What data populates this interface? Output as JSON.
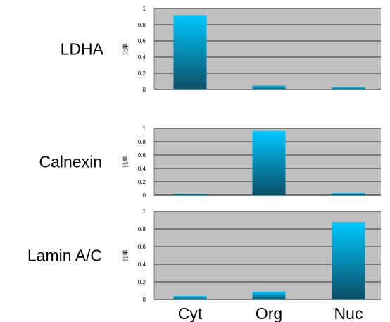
{
  "chart_data": [
    {
      "type": "bar",
      "title": "LDHA",
      "ylabel": "比率",
      "categories": [
        "Cyt",
        "Org",
        "Nuc"
      ],
      "values": [
        0.92,
        0.05,
        0.03
      ],
      "ylim": [
        0,
        1
      ],
      "yticks": [
        "0",
        "0.2",
        "0.4",
        "0.6",
        "0.8",
        "1"
      ],
      "grid": true
    },
    {
      "type": "bar",
      "title": "Calnexin",
      "ylabel": "比率",
      "categories": [
        "Cyt",
        "Org",
        "Nuc"
      ],
      "values": [
        0.02,
        0.96,
        0.03
      ],
      "ylim": [
        0,
        1
      ],
      "yticks": [
        "0",
        "0.2",
        "0.4",
        "0.6",
        "0.8",
        "1"
      ],
      "grid": true
    },
    {
      "type": "bar",
      "title": "Lamin A/C",
      "ylabel": "比率",
      "categories": [
        "Cyt",
        "Org",
        "Nuc"
      ],
      "values": [
        0.04,
        0.09,
        0.88
      ],
      "ylim": [
        0,
        1
      ],
      "yticks": [
        "0",
        "0.2",
        "0.4",
        "0.6",
        "0.8",
        "1"
      ],
      "grid": true
    }
  ],
  "x_axis": {
    "tick_labels": [
      "Cyt",
      "Org",
      "Nuc"
    ]
  },
  "colors": {
    "plot_background": "#c0c0c0",
    "bar_top": "#00c8ff",
    "bar_bottom": "#0b4f66",
    "gridline": "#000000"
  }
}
